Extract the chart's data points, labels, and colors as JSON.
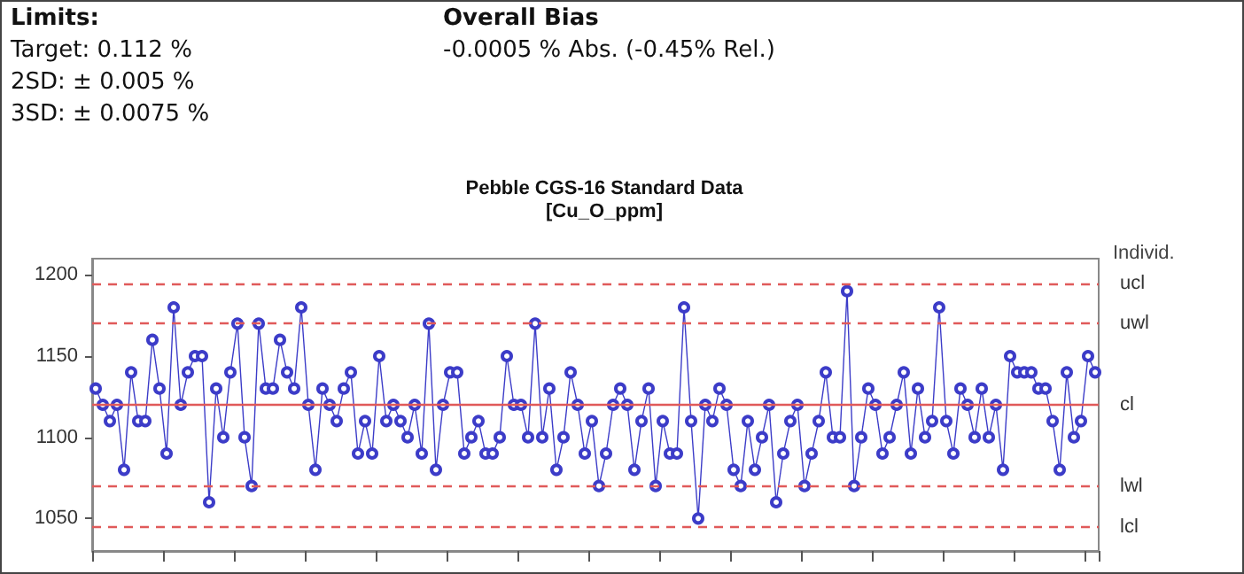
{
  "chart_data": {
    "type": "line",
    "title": "Pebble CGS-16 Standard Data",
    "subtitle": "[Cu_O_ppm]",
    "annotations": [
      "Limits:",
      "Target: 0.112 %",
      "2SD: ± 0.005 %",
      "3SD: ± 0.0075 %",
      "Overall Bias",
      "-0.0005 % Abs. (-0.45% Rel.)",
      "Individ."
    ],
    "categories": [
      null,
      null,
      null,
      null,
      null,
      null,
      null,
      null,
      null,
      null,
      null,
      null,
      null,
      null,
      null,
      null,
      null,
      null,
      null,
      null,
      null,
      null,
      null,
      null,
      null,
      null,
      null,
      null,
      null,
      null,
      null,
      null,
      null,
      null,
      null,
      null,
      null,
      null,
      null,
      null,
      null,
      null,
      null,
      null,
      null,
      null,
      null,
      null,
      null,
      null,
      null,
      null,
      null,
      null,
      null,
      null,
      null,
      null,
      null,
      null,
      null,
      null,
      null,
      null,
      null,
      null,
      null,
      null,
      null,
      null,
      null,
      null,
      null,
      null,
      null,
      null,
      null,
      null,
      null,
      null,
      null,
      null,
      null,
      null,
      null,
      null,
      null,
      null,
      null,
      null,
      null,
      null,
      null,
      null,
      null,
      null,
      null,
      null,
      null,
      null,
      null,
      null,
      null,
      null,
      null,
      null,
      null,
      null,
      null,
      null,
      null,
      null,
      null,
      null,
      null,
      null,
      null,
      null,
      null,
      null,
      null,
      null,
      null,
      null,
      null,
      null,
      null,
      null,
      null,
      null,
      null,
      null,
      null,
      null,
      null,
      null,
      null,
      null,
      null,
      null,
      null,
      null
    ],
    "series": [
      {
        "color": "#3c3cc8",
        "values": [
          1130,
          1120,
          1110,
          1120,
          1080,
          1140,
          1110,
          1110,
          1160,
          1130,
          1090,
          1180,
          1120,
          1140,
          1150,
          1150,
          1060,
          1130,
          1100,
          1140,
          1170,
          1100,
          1070,
          1170,
          1130,
          1130,
          1160,
          1140,
          1130,
          1180,
          1120,
          1080,
          1130,
          1120,
          1110,
          1130,
          1140,
          1090,
          1110,
          1090,
          1150,
          1110,
          1120,
          1110,
          1100,
          1120,
          1090,
          1170,
          1080,
          1120,
          1140,
          1140,
          1090,
          1100,
          1110,
          1090,
          1090,
          1100,
          1150,
          1120,
          1120,
          1100,
          1170,
          1100,
          1130,
          1080,
          1100,
          1140,
          1120,
          1090,
          1110,
          1070,
          1090,
          1120,
          1130,
          1120,
          1080,
          1110,
          1130,
          1070,
          1110,
          1090,
          1090,
          1180,
          1110,
          1050,
          1120,
          1110,
          1130,
          1120,
          1080,
          1070,
          1110,
          1080,
          1100,
          1120,
          1060,
          1090,
          1110,
          1120,
          1070,
          1090,
          1110,
          1140,
          1100,
          1100,
          1190,
          1070,
          1100,
          1130,
          1120,
          1090,
          1100,
          1120,
          1140,
          1090,
          1130,
          1100,
          1110,
          1180,
          1110,
          1090,
          1130,
          1120,
          1100,
          1130,
          1100,
          1120,
          1080,
          1150,
          1140,
          1140,
          1140,
          1130,
          1130,
          1110,
          1080,
          1140,
          1100,
          1110,
          1150,
          1140
        ]
      }
    ],
    "ylim": [
      1030,
      1210
    ],
    "yticks": [
      1050,
      1100,
      1150,
      1200
    ],
    "marker": "circle",
    "line_style": "solid",
    "grid": false,
    "ref_lines": [
      {
        "axis": "y",
        "value": 1195,
        "label": "ucl",
        "color": "#e05a5a",
        "line_style": "dashed"
      },
      {
        "axis": "y",
        "value": 1170,
        "label": "uwl",
        "color": "#e05a5a",
        "line_style": "dashed"
      },
      {
        "axis": "y",
        "value": 1120,
        "label": "cl",
        "color": "#e05a5a",
        "line_style": "solid"
      },
      {
        "axis": "y",
        "value": 1070,
        "label": "lwl",
        "color": "#e05a5a",
        "line_style": "dashed"
      },
      {
        "axis": "y",
        "value": 1045,
        "label": "lcl",
        "color": "#e05a5a",
        "line_style": "dashed"
      }
    ]
  }
}
